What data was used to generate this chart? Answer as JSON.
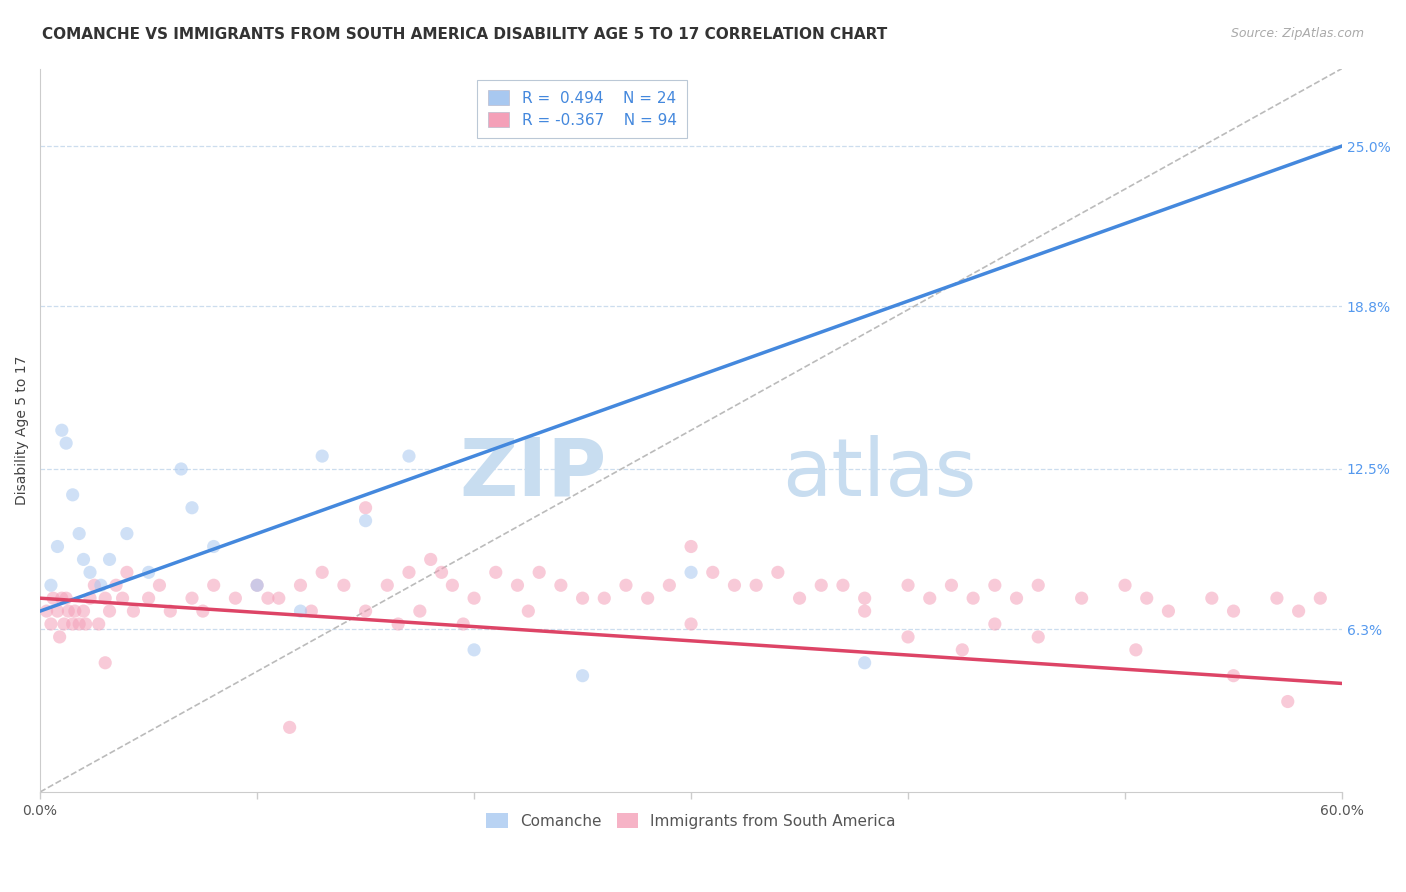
{
  "title": "COMANCHE VS IMMIGRANTS FROM SOUTH AMERICA DISABILITY AGE 5 TO 17 CORRELATION CHART",
  "source": "Source: ZipAtlas.com",
  "ylabel": "Disability Age 5 to 17",
  "xmin": 0.0,
  "xmax": 60.0,
  "ymin": 0.0,
  "ymax": 28.0,
  "blue_R": 0.494,
  "blue_N": 24,
  "pink_R": -0.367,
  "pink_N": 94,
  "blue_color": "#a8c8f0",
  "pink_color": "#f4a0b8",
  "blue_line_color": "#4488dd",
  "pink_line_color": "#dd4466",
  "ref_line_color": "#bbbbbb",
  "grid_color": "#ccddee",
  "watermark_zip": "ZIP",
  "watermark_atlas": "atlas",
  "watermark_color": "#c8ddf0",
  "blue_line_x0": 0.0,
  "blue_line_y0": 7.0,
  "blue_line_x1": 60.0,
  "blue_line_y1": 25.0,
  "pink_line_x0": 0.0,
  "pink_line_y0": 7.5,
  "pink_line_x1": 60.0,
  "pink_line_y1": 4.2,
  "ref_line_x0": 0.0,
  "ref_line_y0": 0.0,
  "ref_line_x1": 60.0,
  "ref_line_y1": 28.0,
  "ylabel_ticks_labels": [
    "6.3%",
    "12.5%",
    "18.8%",
    "25.0%"
  ],
  "ylabel_ticks_vals": [
    6.3,
    12.5,
    18.8,
    25.0
  ],
  "xtick_positions": [
    0.0,
    10.0,
    20.0,
    30.0,
    40.0,
    50.0,
    60.0
  ],
  "xlabel_edge_labels": {
    "0": "0.0%",
    "60": "60.0%"
  },
  "background_color": "#ffffff",
  "title_fontsize": 11,
  "label_fontsize": 10,
  "tick_fontsize": 10,
  "legend_fontsize": 11,
  "source_fontsize": 9,
  "marker_size": 90,
  "marker_alpha": 0.55,
  "blue_x": [
    0.5,
    0.8,
    1.0,
    1.2,
    1.5,
    1.8,
    2.0,
    2.3,
    2.8,
    3.2,
    4.0,
    5.0,
    6.5,
    7.0,
    8.0,
    10.0,
    12.0,
    13.0,
    15.0,
    17.0,
    20.0,
    25.0,
    30.0,
    38.0
  ],
  "blue_y": [
    8.0,
    9.5,
    14.0,
    13.5,
    11.5,
    10.0,
    9.0,
    8.5,
    8.0,
    9.0,
    10.0,
    8.5,
    12.5,
    11.0,
    9.5,
    8.0,
    7.0,
    13.0,
    10.5,
    13.0,
    5.5,
    4.5,
    8.5,
    5.0
  ],
  "pink_x": [
    0.3,
    0.5,
    0.6,
    0.8,
    0.9,
    1.0,
    1.1,
    1.2,
    1.3,
    1.5,
    1.6,
    1.8,
    2.0,
    2.1,
    2.3,
    2.5,
    2.7,
    3.0,
    3.2,
    3.5,
    3.8,
    4.0,
    4.3,
    5.0,
    5.5,
    6.0,
    7.0,
    7.5,
    8.0,
    9.0,
    10.0,
    10.5,
    11.0,
    12.0,
    12.5,
    13.0,
    14.0,
    15.0,
    16.0,
    17.0,
    18.0,
    18.5,
    19.0,
    20.0,
    21.0,
    22.0,
    23.0,
    24.0,
    25.0,
    26.0,
    27.0,
    28.0,
    29.0,
    30.0,
    31.0,
    32.0,
    33.0,
    34.0,
    35.0,
    36.0,
    37.0,
    38.0,
    40.0,
    41.0,
    42.0,
    43.0,
    44.0,
    45.0,
    46.0,
    48.0,
    50.0,
    51.0,
    52.0,
    54.0,
    55.0,
    57.0,
    58.0,
    59.0,
    15.0,
    16.5,
    17.5,
    19.5,
    22.5,
    30.0,
    38.0,
    44.0,
    46.0,
    50.5,
    55.0,
    57.5,
    40.0,
    42.5,
    11.5,
    3.0
  ],
  "pink_y": [
    7.0,
    6.5,
    7.5,
    7.0,
    6.0,
    7.5,
    6.5,
    7.5,
    7.0,
    6.5,
    7.0,
    6.5,
    7.0,
    6.5,
    7.5,
    8.0,
    6.5,
    7.5,
    7.0,
    8.0,
    7.5,
    8.5,
    7.0,
    7.5,
    8.0,
    7.0,
    7.5,
    7.0,
    8.0,
    7.5,
    8.0,
    7.5,
    7.5,
    8.0,
    7.0,
    8.5,
    8.0,
    11.0,
    8.0,
    8.5,
    9.0,
    8.5,
    8.0,
    7.5,
    8.5,
    8.0,
    8.5,
    8.0,
    7.5,
    7.5,
    8.0,
    7.5,
    8.0,
    9.5,
    8.5,
    8.0,
    8.0,
    8.5,
    7.5,
    8.0,
    8.0,
    7.5,
    8.0,
    7.5,
    8.0,
    7.5,
    8.0,
    7.5,
    8.0,
    7.5,
    8.0,
    7.5,
    7.0,
    7.5,
    7.0,
    7.5,
    7.0,
    7.5,
    7.0,
    6.5,
    7.0,
    6.5,
    7.0,
    6.5,
    7.0,
    6.5,
    6.0,
    5.5,
    4.5,
    3.5,
    6.0,
    5.5,
    2.5,
    5.0
  ]
}
